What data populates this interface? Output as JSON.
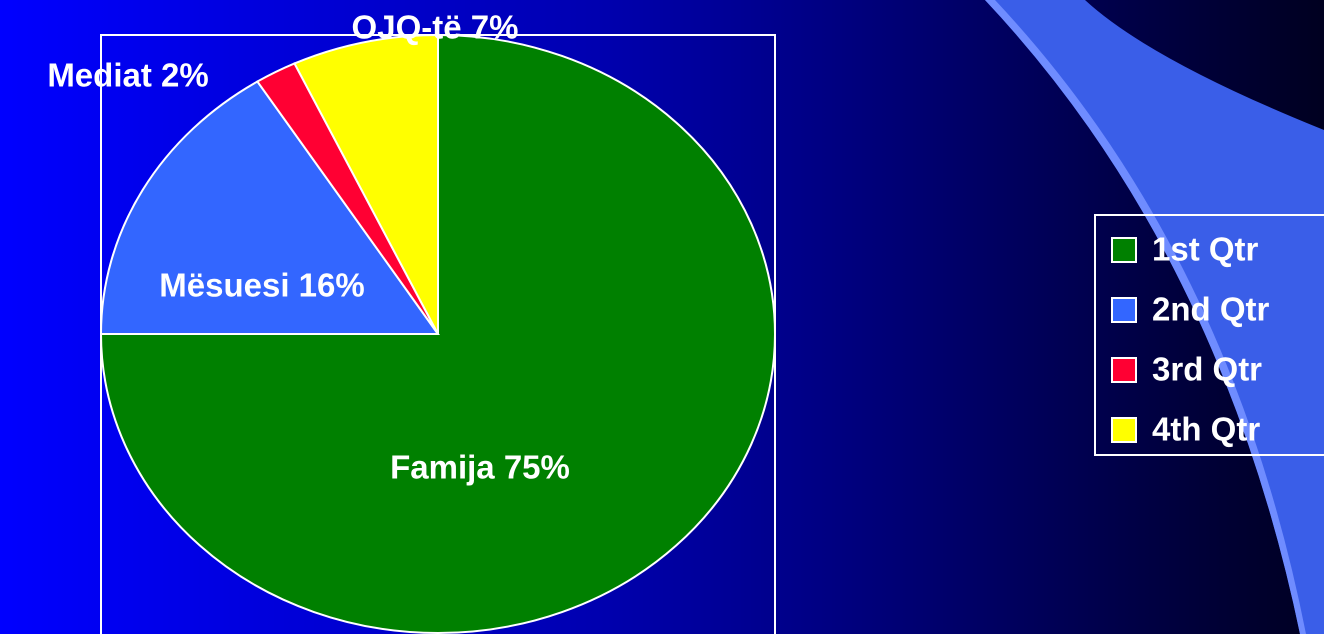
{
  "chart_data": {
    "type": "pie",
    "categories": [
      "1st Qtr",
      "2nd Qtr",
      "3rd Qtr",
      "4th Qtr"
    ],
    "values": [
      75,
      16,
      2,
      7
    ],
    "value_labels": [
      "Famija 75%",
      "Mësuesi 16%",
      "Mediat 2%",
      "OJQ-të 7%"
    ],
    "colors": [
      "#008000",
      "#3366ff",
      "#ff0033",
      "#ffff00"
    ],
    "legend": "right"
  }
}
